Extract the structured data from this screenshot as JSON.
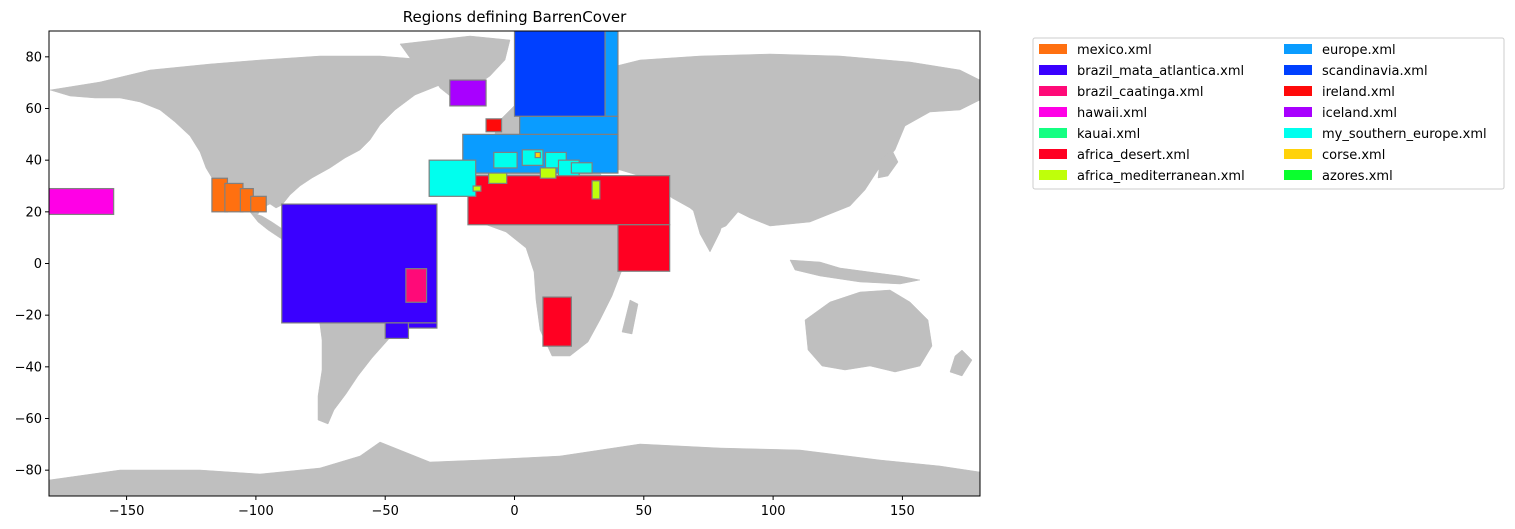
{
  "chart_data": {
    "type": "map",
    "title": "Regions defining BarrenCover",
    "xlim": [
      -180,
      180
    ],
    "ylim": [
      -90,
      90
    ],
    "xticks": [
      -150,
      -100,
      -50,
      0,
      50,
      100,
      150
    ],
    "yticks": [
      -80,
      -60,
      -40,
      -20,
      0,
      20,
      40,
      60,
      80
    ],
    "land_color": "#bfbfbf",
    "legend": {
      "placement": "outside-right-top",
      "columns": 2,
      "entries": [
        {
          "label": "mexico.xml",
          "color": "#ff7010"
        },
        {
          "label": "brazil_mata_atlantica.xml",
          "color": "#3a00ff"
        },
        {
          "label": "brazil_caatinga.xml",
          "color": "#ff0a78"
        },
        {
          "label": "hawaii.xml",
          "color": "#ff00e6"
        },
        {
          "label": "kauai.xml",
          "color": "#14ff82"
        },
        {
          "label": "africa_desert.xml",
          "color": "#ff0022"
        },
        {
          "label": "africa_mediterranean.xml",
          "color": "#bfff0a"
        },
        {
          "label": "europe.xml",
          "color": "#0a9cff"
        },
        {
          "label": "scandinavia.xml",
          "color": "#0040ff"
        },
        {
          "label": "ireland.xml",
          "color": "#ff0a0a"
        },
        {
          "label": "iceland.xml",
          "color": "#a800ff"
        },
        {
          "label": "my_southern_europe.xml",
          "color": "#00ffee"
        },
        {
          "label": "corse.xml",
          "color": "#ffd20a"
        },
        {
          "label": "azores.xml",
          "color": "#0aff2e"
        }
      ]
    },
    "regions": [
      {
        "name": "mexico.xml",
        "color": "#ff7010",
        "boxes": [
          [
            -117,
            20,
            -111,
            33
          ],
          [
            -112,
            20,
            -105,
            31
          ],
          [
            -106,
            20,
            -101,
            29
          ],
          [
            -102,
            20,
            -96,
            26
          ]
        ]
      },
      {
        "name": "brazil_mata_atlantica.xml",
        "color": "#3a00ff",
        "boxes": [
          [
            -90,
            -23,
            -30,
            23
          ],
          [
            -50,
            -29,
            -41,
            -23
          ],
          [
            -41,
            -25,
            -30,
            -23
          ]
        ]
      },
      {
        "name": "brazil_caatinga.xml",
        "color": "#ff0a78",
        "boxes": [
          [
            -42,
            -15,
            -34,
            -2
          ]
        ]
      },
      {
        "name": "hawaii.xml",
        "color": "#ff00e6",
        "boxes": [
          [
            -180,
            19,
            -155,
            29
          ]
        ]
      },
      {
        "name": "africa_desert.xml",
        "color": "#ff0022",
        "boxes": [
          [
            -18,
            15,
            60,
            34
          ],
          [
            40,
            -3,
            60,
            15
          ],
          [
            11,
            -32,
            22,
            -13
          ]
        ]
      },
      {
        "name": "europe.xml",
        "color": "#0a9cff",
        "boxes": [
          [
            -20,
            35,
            40,
            50
          ],
          [
            2,
            50,
            40,
            57
          ],
          [
            35,
            57,
            40,
            90
          ]
        ]
      },
      {
        "name": "scandinavia.xml",
        "color": "#0040ff",
        "boxes": [
          [
            0,
            57,
            35,
            90
          ]
        ]
      },
      {
        "name": "ireland.xml",
        "color": "#ff0a0a",
        "boxes": [
          [
            -11,
            51,
            -5,
            56
          ]
        ]
      },
      {
        "name": "iceland.xml",
        "color": "#a800ff",
        "boxes": [
          [
            -25,
            61,
            -11,
            71
          ]
        ]
      },
      {
        "name": "my_southern_europe.xml",
        "color": "#00ffee",
        "boxes": [
          [
            -33,
            26,
            -15,
            40
          ],
          [
            -8,
            37,
            1,
            43
          ],
          [
            3,
            38,
            11,
            44
          ],
          [
            12,
            37,
            20,
            43
          ],
          [
            17,
            34,
            25,
            40
          ],
          [
            22,
            35,
            30,
            39
          ]
        ]
      },
      {
        "name": "africa_mediterranean.xml",
        "color": "#bfff0a",
        "boxes": [
          [
            -10,
            31,
            -3,
            35
          ],
          [
            10,
            33,
            16,
            37
          ],
          [
            30,
            25,
            33,
            32
          ],
          [
            -16,
            28,
            -13,
            30
          ]
        ]
      },
      {
        "name": "corse.xml",
        "color": "#ffd20a",
        "boxes": [
          [
            8,
            41,
            10,
            43
          ]
        ]
      }
    ]
  }
}
